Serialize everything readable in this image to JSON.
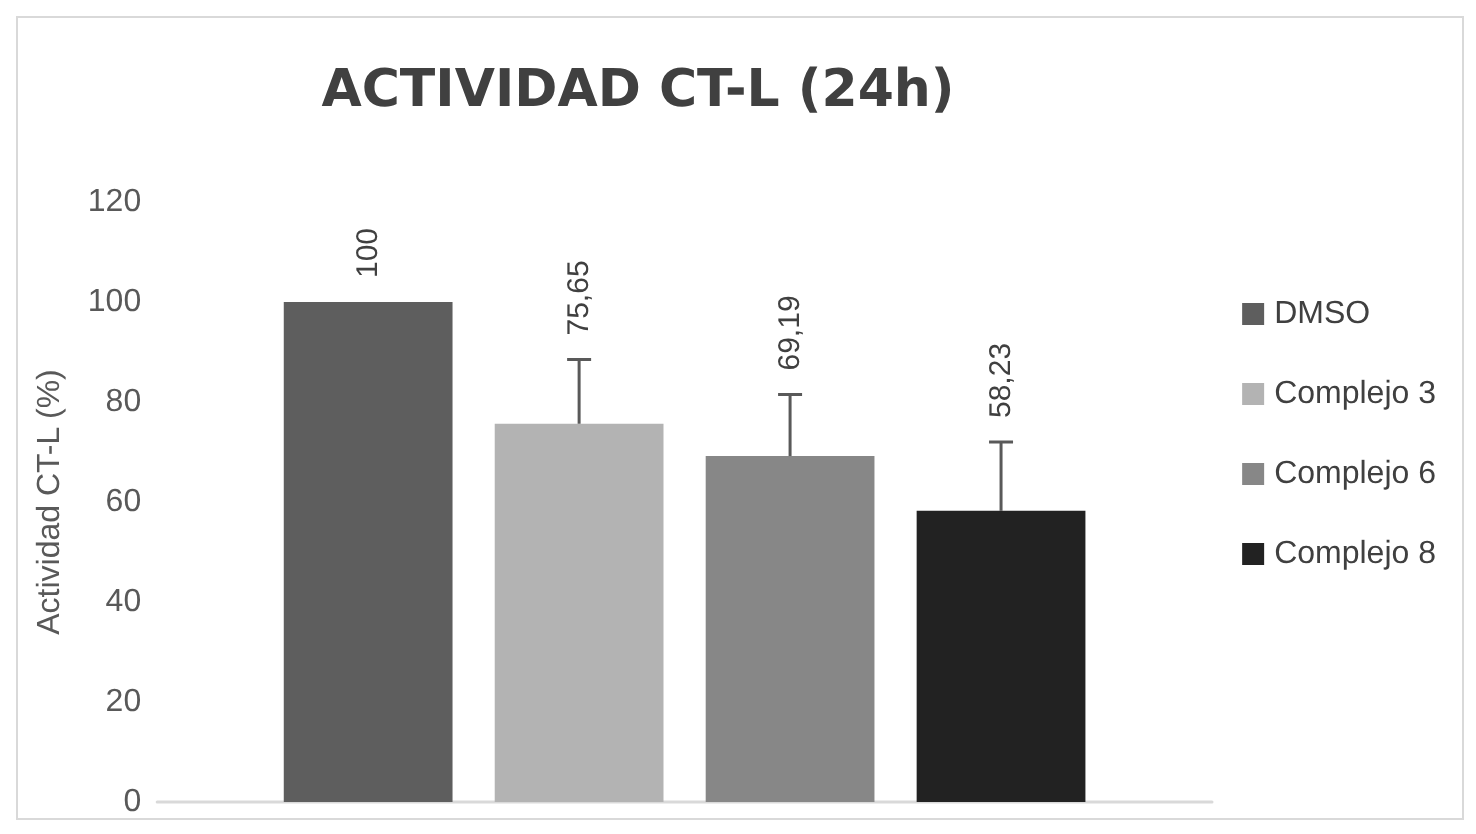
{
  "chart_data": {
    "type": "bar",
    "title": "ACTIVIDAD CT-L (24h)",
    "ylabel": "Actividad CT-L (%)",
    "categories": [
      null
    ],
    "series": [
      {
        "name": "DMSO",
        "color": "#5e5e5e",
        "values": [
          100
        ],
        "value_labels": [
          "100"
        ]
      },
      {
        "name": "Complejo 3",
        "color": "#b3b3b3",
        "values": [
          75.65
        ],
        "errors": [
          [
            75.65,
            88.5
          ]
        ],
        "value_labels": [
          "75,65"
        ]
      },
      {
        "name": "Complejo 6",
        "color": "#878787",
        "values": [
          69.19
        ],
        "errors": [
          [
            69.19,
            81.5
          ]
        ],
        "value_labels": [
          "69,19"
        ]
      },
      {
        "name": "Complejo 8",
        "color": "#222222",
        "values": [
          58.23
        ],
        "errors": [
          [
            58.23,
            72
          ]
        ],
        "value_labels": [
          "58,23"
        ]
      }
    ],
    "ylim": [
      0,
      120
    ],
    "yticks": [
      0,
      20,
      40,
      60,
      80,
      100,
      120
    ],
    "grid": false,
    "legend": "right"
  }
}
